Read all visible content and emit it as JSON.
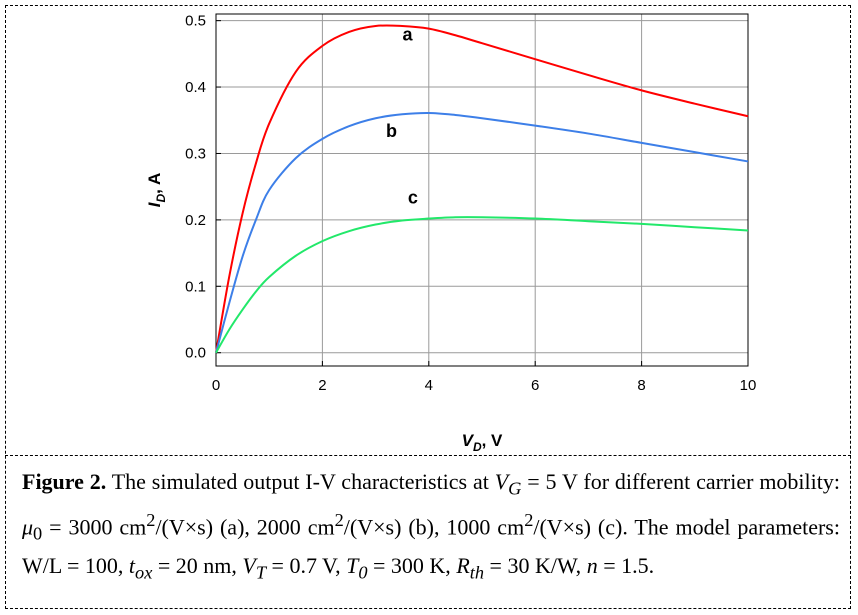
{
  "chart_data": {
    "type": "line",
    "xlabel": "V",
    "xlabel_sub": "D",
    "xlabel_unit": ", V",
    "ylabel": "I",
    "ylabel_sub": "D",
    "ylabel_unit": ", A",
    "xlim": [
      0,
      10
    ],
    "ylim": [
      -0.02,
      0.51
    ],
    "x_ticks": [
      "0",
      "2",
      "4",
      "6",
      "8",
      "10"
    ],
    "y_ticks": [
      "0.0",
      "0.1",
      "0.2",
      "0.3",
      "0.4",
      "0.5"
    ],
    "grid": true,
    "series": [
      {
        "name": "a",
        "color": "#ff0000",
        "x": [
          0,
          0.25,
          0.5,
          0.75,
          1.0,
          1.5,
          2.0,
          2.5,
          3.0,
          3.5,
          4.0,
          4.5,
          5.0,
          6.0,
          7.0,
          8.0,
          9.0,
          10.0
        ],
        "y": [
          0,
          0.115,
          0.21,
          0.285,
          0.345,
          0.423,
          0.462,
          0.483,
          0.492,
          0.492,
          0.488,
          0.478,
          0.466,
          0.442,
          0.418,
          0.395,
          0.375,
          0.356
        ]
      },
      {
        "name": "b",
        "color": "#3d7fe8",
        "x": [
          0,
          0.25,
          0.5,
          0.75,
          1.0,
          1.5,
          2.0,
          2.5,
          3.0,
          3.5,
          4.0,
          4.5,
          5.0,
          6.0,
          7.0,
          8.0,
          9.0,
          10.0
        ],
        "y": [
          0,
          0.075,
          0.145,
          0.2,
          0.245,
          0.293,
          0.322,
          0.341,
          0.353,
          0.359,
          0.361,
          0.358,
          0.353,
          0.342,
          0.33,
          0.316,
          0.302,
          0.288
        ]
      },
      {
        "name": "c",
        "color": "#22e86a",
        "x": [
          0,
          0.25,
          0.5,
          0.75,
          1.0,
          1.5,
          2.0,
          2.5,
          3.0,
          3.5,
          4.0,
          4.5,
          5.0,
          6.0,
          7.0,
          8.0,
          9.0,
          10.0
        ],
        "y": [
          0,
          0.035,
          0.065,
          0.092,
          0.114,
          0.146,
          0.168,
          0.183,
          0.193,
          0.199,
          0.202,
          0.204,
          0.204,
          0.202,
          0.198,
          0.194,
          0.189,
          0.184
        ]
      }
    ],
    "labels": [
      {
        "text": "a",
        "x": 3.6,
        "y": 0.47
      },
      {
        "text": "b",
        "x": 3.3,
        "y": 0.325
      },
      {
        "text": "c",
        "x": 3.7,
        "y": 0.225
      }
    ]
  },
  "caption": {
    "fig_label": "Figure 2.",
    "t1": " The simulated output I-V characteristics at ",
    "vg": "V",
    "vg_sub": "G",
    "t2": " = 5 V for different carrier mobility: ",
    "mu": "μ",
    "mu_sub": "0",
    "t3": " = 3000 cm",
    "t3_sup": "2",
    "t4": "/(V×s) (a), 2000 cm",
    "t4_sup": "2",
    "t5": "/(V×s) (b), 1000 cm",
    "t5_sup": "2",
    "t6": "/(V×s) (c). The model parameters: W/L = 100, ",
    "tox": "t",
    "tox_sub": "ox",
    "t7": " = 20 nm, ",
    "vt": "V",
    "vt_sub": "T",
    "t8": " = 0.7 V, ",
    "t0": "T",
    "t0_sub": "0",
    "t9": " = 300 K, ",
    "rth": "R",
    "rth_sub": "th",
    "t10": " = 30 K/W, ",
    "n": "n",
    "t11": " = 1.5."
  }
}
